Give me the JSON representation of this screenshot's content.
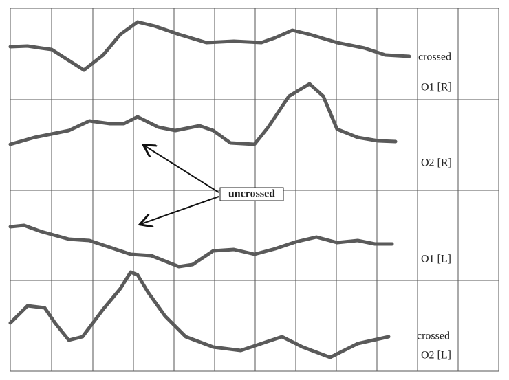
{
  "traces": [
    {
      "note": "crossed",
      "label": "O1 [R]"
    },
    {
      "label": "O2 [R]"
    },
    {
      "label": "O1 [L]"
    },
    {
      "note": "crossed",
      "label": "O2 [L]"
    }
  ],
  "annotation": "uncrossed"
}
